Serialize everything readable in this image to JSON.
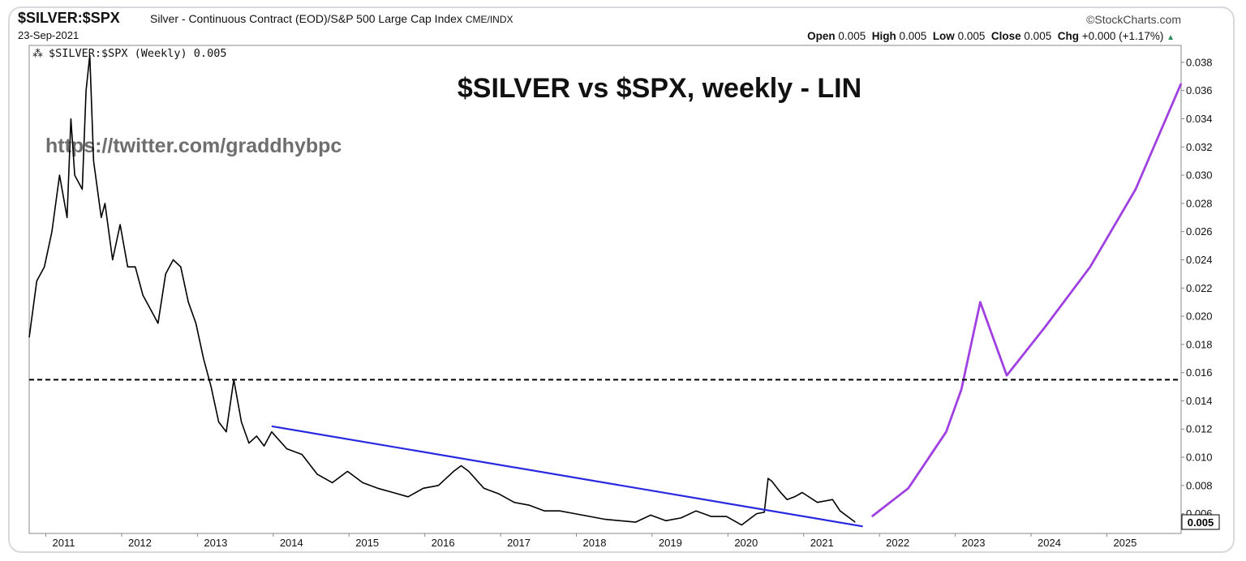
{
  "header": {
    "symbol": "$SILVER:$SPX",
    "description": "Silver - Continuous Contract (EOD)/S&P 500 Large Cap Index",
    "exchange": "CME/INDX",
    "date": "23-Sep-2021",
    "brand": "StockCharts.com",
    "ohlc": {
      "open_label": "Open",
      "open": "0.005",
      "high_label": "High",
      "high": "0.005",
      "low_label": "Low",
      "low": "0.005",
      "close_label": "Close",
      "close": "0.005",
      "chg_label": "Chg",
      "chg": "+0.000 (+1.17%)"
    }
  },
  "chart_data": {
    "type": "line",
    "title": "$SILVER vs $SPX, weekly - LIN",
    "watermark": "https://twitter.com/graddhybpc",
    "legend_text": "$SILVER:$SPX (Weekly) 0.005",
    "current_value_label": "0.005",
    "x_ticks": [
      "2011",
      "2012",
      "2013",
      "2014",
      "2015",
      "2016",
      "2017",
      "2018",
      "2019",
      "2020",
      "2021",
      "2022",
      "2023",
      "2024",
      "2025"
    ],
    "y_ticks": [
      "0.006",
      "0.008",
      "0.010",
      "0.012",
      "0.014",
      "0.016",
      "0.018",
      "0.020",
      "0.022",
      "0.024",
      "0.026",
      "0.028",
      "0.030",
      "0.032",
      "0.034",
      "0.036",
      "0.038"
    ],
    "xlim": [
      2010.8,
      2026.0
    ],
    "ylim": [
      0.0046,
      0.0392
    ],
    "grid": false,
    "series": [
      {
        "color": "#000000",
        "x": [
          2010.8,
          2010.9,
          2011.0,
          2011.1,
          2011.2,
          2011.3,
          2011.35,
          2011.4,
          2011.5,
          2011.55,
          2011.6,
          2011.65,
          2011.7,
          2011.75,
          2011.8,
          2011.9,
          2012.0,
          2012.1,
          2012.2,
          2012.3,
          2012.4,
          2012.5,
          2012.6,
          2012.7,
          2012.8,
          2012.9,
          2013.0,
          2013.1,
          2013.2,
          2013.3,
          2013.4,
          2013.5,
          2013.6,
          2013.7,
          2013.8,
          2013.9,
          2014.0,
          2014.2,
          2014.4,
          2014.6,
          2014.8,
          2015.0,
          2015.2,
          2015.4,
          2015.6,
          2015.8,
          2016.0,
          2016.2,
          2016.4,
          2016.5,
          2016.6,
          2016.8,
          2017.0,
          2017.2,
          2017.4,
          2017.6,
          2017.8,
          2018.0,
          2018.2,
          2018.4,
          2018.6,
          2018.8,
          2019.0,
          2019.2,
          2019.4,
          2019.6,
          2019.8,
          2020.0,
          2020.2,
          2020.4,
          2020.5,
          2020.55,
          2020.6,
          2020.7,
          2020.8,
          2020.9,
          2021.0,
          2021.2,
          2021.4,
          2021.5,
          2021.6,
          2021.7
        ],
        "y": [
          0.0185,
          0.0225,
          0.0235,
          0.026,
          0.03,
          0.027,
          0.034,
          0.03,
          0.029,
          0.036,
          0.0385,
          0.031,
          0.029,
          0.027,
          0.028,
          0.024,
          0.0265,
          0.0235,
          0.0235,
          0.0215,
          0.0205,
          0.0195,
          0.023,
          0.024,
          0.0235,
          0.021,
          0.0195,
          0.017,
          0.015,
          0.0125,
          0.0118,
          0.0155,
          0.0125,
          0.011,
          0.0115,
          0.0108,
          0.0118,
          0.0106,
          0.0102,
          0.0088,
          0.0082,
          0.009,
          0.0082,
          0.0078,
          0.0075,
          0.0072,
          0.0078,
          0.008,
          0.009,
          0.0094,
          0.009,
          0.0078,
          0.0074,
          0.0068,
          0.0066,
          0.0062,
          0.0062,
          0.006,
          0.0058,
          0.0056,
          0.0055,
          0.0054,
          0.0059,
          0.0055,
          0.0057,
          0.0062,
          0.0058,
          0.0058,
          0.0052,
          0.006,
          0.0061,
          0.0085,
          0.0083,
          0.0076,
          0.007,
          0.0072,
          0.0075,
          0.0068,
          0.007,
          0.0062,
          0.0058,
          0.0054
        ]
      },
      {
        "color": "#2828e0",
        "x": [
          2014.0,
          2021.8
        ],
        "y": [
          0.0122,
          0.0051
        ]
      },
      {
        "color": "#a040e0",
        "x": [
          2021.92,
          2022.4,
          2022.9,
          2023.1,
          2023.35,
          2023.7,
          2024.2,
          2024.8,
          2025.4,
          2026.0
        ],
        "y": [
          0.0058,
          0.0078,
          0.0118,
          0.0148,
          0.021,
          0.0158,
          0.0192,
          0.0235,
          0.029,
          0.0365
        ]
      },
      {
        "color": "#000000",
        "x": [
          2010.8,
          2026.0
        ],
        "y": [
          0.0155,
          0.0155
        ]
      }
    ]
  }
}
